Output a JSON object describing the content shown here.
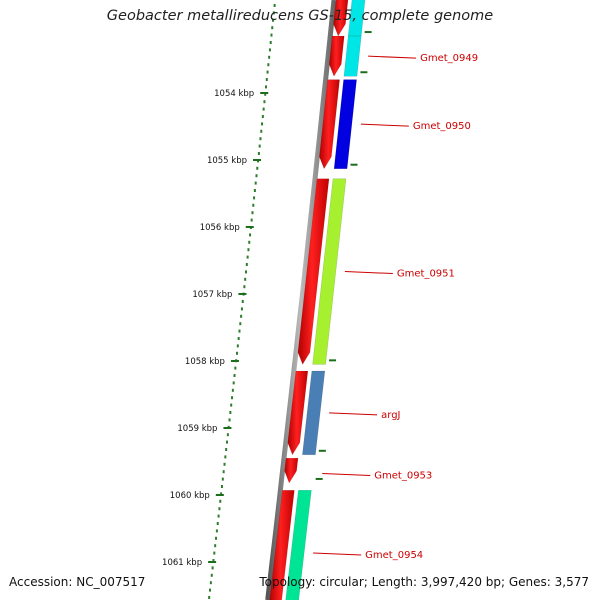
{
  "title": "Geobacter metallireducens GS-15, complete genome",
  "footer": {
    "accession": "Accession: NC_007517",
    "summary": "Topology: circular; Length: 3,997,420 bp; Genes: 3,577"
  },
  "scale": {
    "unit": "kbp",
    "ticks": [
      {
        "kbp": 1054,
        "label": "1054 kbp"
      },
      {
        "kbp": 1055,
        "label": "1055 kbp"
      },
      {
        "kbp": 1056,
        "label": "1056 kbp"
      },
      {
        "kbp": 1057,
        "label": "1057 kbp"
      },
      {
        "kbp": 1058,
        "label": "1058 kbp"
      },
      {
        "kbp": 1059,
        "label": "1059 kbp"
      },
      {
        "kbp": 1060,
        "label": "1060 kbp"
      },
      {
        "kbp": 1061,
        "label": "1061 kbp"
      }
    ]
  },
  "genes": [
    {
      "label": "",
      "start_kbp": 1052.6,
      "end_kbp": 1053.15,
      "color": "#00e5e5"
    },
    {
      "label": "Gmet_0949",
      "start_kbp": 1053.15,
      "end_kbp": 1053.75,
      "color": "#00e5e5"
    },
    {
      "label": "Gmet_0950",
      "start_kbp": 1053.8,
      "end_kbp": 1055.13,
      "color": "#0000e0"
    },
    {
      "label": "Gmet_0951",
      "start_kbp": 1055.28,
      "end_kbp": 1058.05,
      "color": "#a6f030"
    },
    {
      "label": "argJ",
      "start_kbp": 1058.15,
      "end_kbp": 1059.4,
      "color": "#4a7fb5"
    },
    {
      "label": "Gmet_0953",
      "start_kbp": 1059.45,
      "end_kbp": 1059.82,
      "color": null
    },
    {
      "label": "Gmet_0954",
      "start_kbp": 1059.93,
      "end_kbp": 1061.8,
      "color": "#00e595"
    }
  ]
}
